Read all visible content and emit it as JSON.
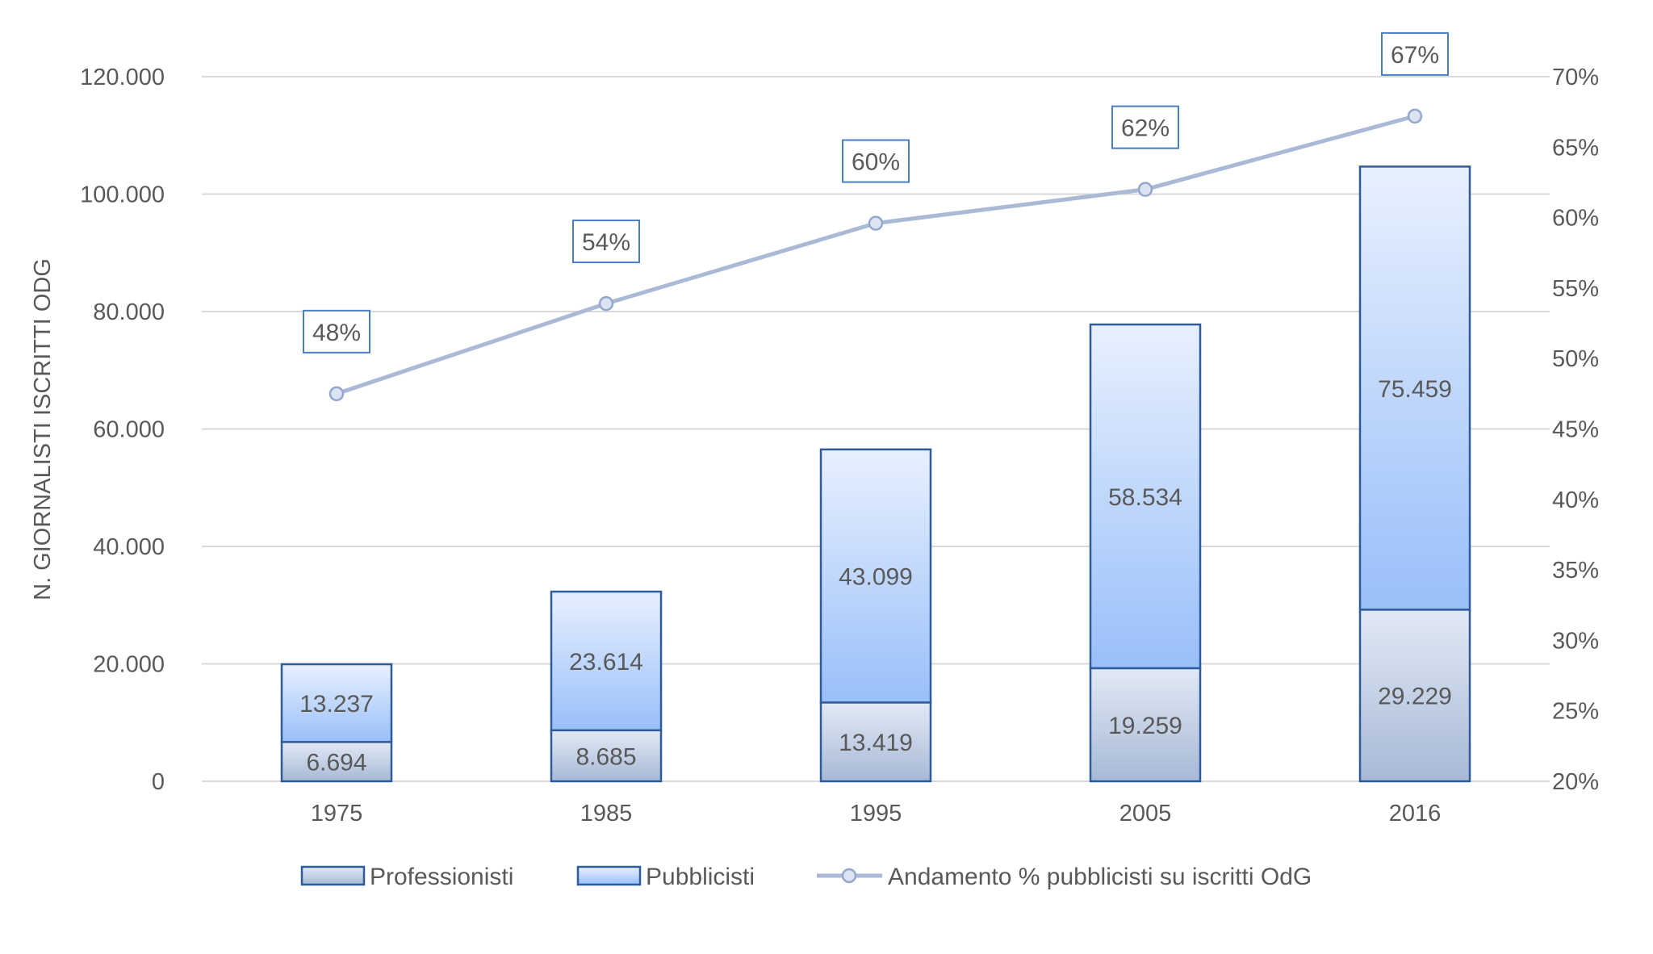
{
  "chart_data": {
    "type": "bar",
    "stacked": true,
    "categories": [
      "1975",
      "1985",
      "1995",
      "2005",
      "2016"
    ],
    "ylabel": "N. GIORNALISTI ISCRITTI ODG",
    "ylim": [
      0,
      120000
    ],
    "y_ticks": [
      "0",
      "20.000",
      "40.000",
      "60.000",
      "80.000",
      "100.000",
      "120.000"
    ],
    "y2lim": [
      0.2,
      0.7
    ],
    "y2_ticks": [
      "20%",
      "25%",
      "30%",
      "35%",
      "40%",
      "45%",
      "50%",
      "55%",
      "60%",
      "65%",
      "70%"
    ],
    "grid": true,
    "legend_position": "bottom",
    "series": [
      {
        "name": "Professionisti",
        "type": "bar",
        "axis": "left",
        "values": [
          6694,
          8685,
          13419,
          19259,
          29229
        ],
        "labels": [
          "6.694",
          "8.685",
          "13.419",
          "19.259",
          "29.229"
        ]
      },
      {
        "name": "Pubblicisti",
        "type": "bar",
        "axis": "left",
        "values": [
          13237,
          23614,
          43099,
          58534,
          75459
        ],
        "labels": [
          "13.237",
          "23.614",
          "43.099",
          "58.534",
          "75.459"
        ]
      },
      {
        "name": "Andamento % pubblicisti su iscritti OdG",
        "type": "line",
        "axis": "right",
        "values": [
          0.48,
          0.54,
          0.6,
          0.62,
          0.67
        ],
        "plotted": [
          0.475,
          0.539,
          0.596,
          0.62,
          0.672
        ],
        "labels": [
          "48%",
          "54%",
          "60%",
          "62%",
          "67%"
        ]
      }
    ],
    "colors": {
      "bar_stroke": "#2E5B9A",
      "prof_top": "#E2E9F5",
      "prof_bottom": "#A7B9D6",
      "pubb_top": "#E8F0FE",
      "pubb_bottom": "#99BFF9",
      "line": "#A9B9D6",
      "marker_fill": "#DCE4F2",
      "marker_stroke": "#93A8CC",
      "label_box": "#4A7EC2",
      "grid": "#D9D9D9"
    }
  }
}
